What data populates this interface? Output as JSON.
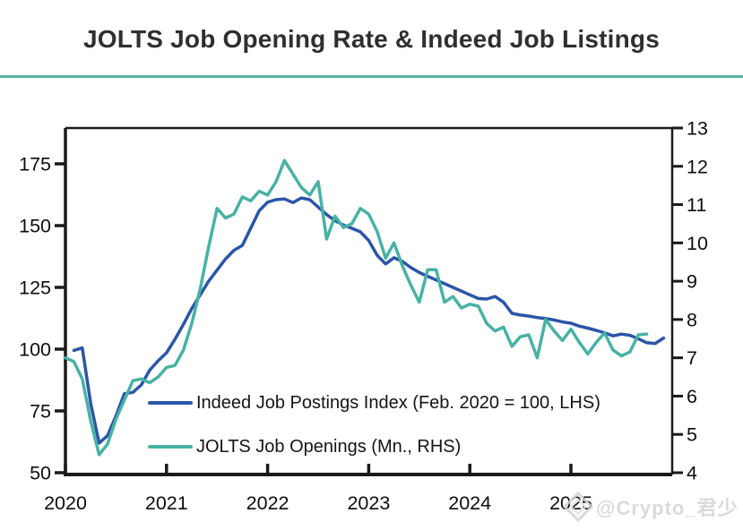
{
  "header": {
    "title": "JOLTS Job Opening Rate & Indeed Job Listings"
  },
  "colors": {
    "indeed_blue": "#2b55a7",
    "jolts_teal": "#48b2a3",
    "title_rule_teal": "#55b3a7",
    "axis_black": "#1a1a1a",
    "watermark_gray": "#dadada"
  },
  "legend": {
    "items": [
      {
        "label": "Indeed Job Postings Index (Feb. 2020 = 100, LHS)",
        "color": "#2b55a7"
      },
      {
        "label": "JOLTS Job Openings (Mn., RHS)",
        "color": "#48b2a3"
      }
    ]
  },
  "watermark": {
    "icon": "gem-diamond-icon",
    "text": "@Crypto_君少"
  },
  "chart_data": {
    "type": "line",
    "title": "JOLTS Job Opening Rate & Indeed Job Listings",
    "grid": false,
    "legend_position": "inside-bottom-left",
    "x_axis": {
      "tick_labels": [
        "2020",
        "2021",
        "2022",
        "2023",
        "2024",
        "2025"
      ],
      "range": [
        2020.0,
        2026.0
      ]
    },
    "y_left_axis": {
      "ticks": [
        50,
        75,
        100,
        125,
        150,
        175
      ],
      "range": [
        50,
        189
      ]
    },
    "y_right_axis": {
      "ticks": [
        4,
        5,
        6,
        7,
        8,
        9,
        10,
        11,
        12,
        13
      ],
      "range": [
        4,
        13
      ]
    },
    "series": [
      {
        "name": "Indeed Job Postings Index (Feb. 2020 = 100, LHS)",
        "axis": "left",
        "color": "#2b55a7",
        "frequency": "monthly",
        "start": "2020-02",
        "values": [
          99.5,
          100.5,
          78,
          62,
          65,
          73,
          82,
          82.5,
          85.5,
          91.5,
          95.3,
          98.5,
          104,
          110,
          116.5,
          122,
          127.5,
          132,
          136.5,
          140,
          142,
          149,
          156,
          159.5,
          160.5,
          160.8,
          159.3,
          161.2,
          160.5,
          157.5,
          154.5,
          152,
          150.2,
          148.9,
          147.5,
          144,
          138,
          134.5,
          137,
          135.5,
          133,
          131,
          129.5,
          128,
          126.5,
          125,
          123.5,
          122,
          120.5,
          120.3,
          121.3,
          119,
          114.5,
          113.8,
          113.4,
          112.8,
          112.4,
          111.8,
          111,
          110.5,
          109.3,
          108.5,
          107.6,
          106.6,
          105.4,
          106.1,
          105.6,
          104.2,
          102.6,
          102.3,
          104.5
        ]
      },
      {
        "name": "JOLTS Job Openings (Mn., RHS)",
        "axis": "right",
        "color": "#48b2a3",
        "frequency": "monthly",
        "start": "2020-01",
        "values": [
          7.0,
          6.9,
          6.45,
          5.35,
          4.47,
          4.75,
          5.4,
          5.9,
          6.4,
          6.45,
          6.35,
          6.5,
          6.75,
          6.8,
          7.2,
          7.9,
          8.8,
          9.9,
          10.9,
          10.65,
          10.75,
          11.2,
          11.1,
          11.35,
          11.25,
          11.6,
          12.15,
          11.8,
          11.45,
          11.25,
          11.6,
          10.1,
          10.7,
          10.4,
          10.5,
          10.9,
          10.75,
          10.3,
          9.6,
          10.0,
          9.4,
          8.9,
          8.45,
          9.3,
          9.3,
          8.45,
          8.6,
          8.3,
          8.4,
          8.35,
          7.9,
          7.7,
          7.8,
          7.3,
          7.55,
          7.6,
          7.0,
          8.0,
          7.7,
          7.45,
          7.75,
          7.4,
          7.1,
          7.4,
          7.65,
          7.2,
          7.05,
          7.15,
          7.6,
          7.62
        ]
      }
    ]
  }
}
